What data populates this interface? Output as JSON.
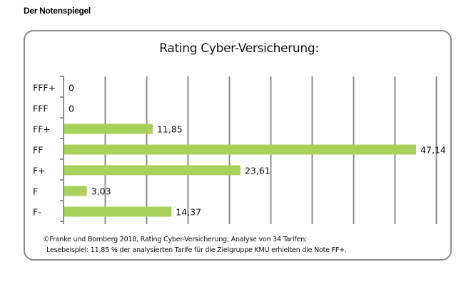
{
  "page": {
    "heading": "Der Notenspiegel"
  },
  "colors": {
    "bar": "#a8d05a",
    "grid": "#8c8c8c",
    "axis": "#6e6e6e",
    "border": "#8a8a8a"
  },
  "chart_data": {
    "type": "bar",
    "orientation": "horizontal",
    "title": "Rating Cyber-Versicherung:",
    "categories": [
      "FFF+",
      "FFF",
      "FF+",
      "FF",
      "F+",
      "F",
      "F-"
    ],
    "values": [
      0,
      0,
      11.85,
      47.14,
      23.61,
      3.03,
      14.37
    ],
    "value_labels": [
      "0",
      "0",
      "11,85",
      "47,14",
      "23,61",
      "3,03",
      "14,37"
    ],
    "xlabel": "",
    "ylabel": "",
    "xlim": [
      0,
      50
    ],
    "grid": true,
    "legend": "none"
  },
  "footnote": {
    "line1": "©Franke und Bornberg 2018, Rating Cyber-Versicherung; Analyse von 34 Tarifen;",
    "line2": "Lesebeispiel: 11,85 % der analysierten Tarife für die Zielgruppe KMU erhielten die Note FF+."
  }
}
